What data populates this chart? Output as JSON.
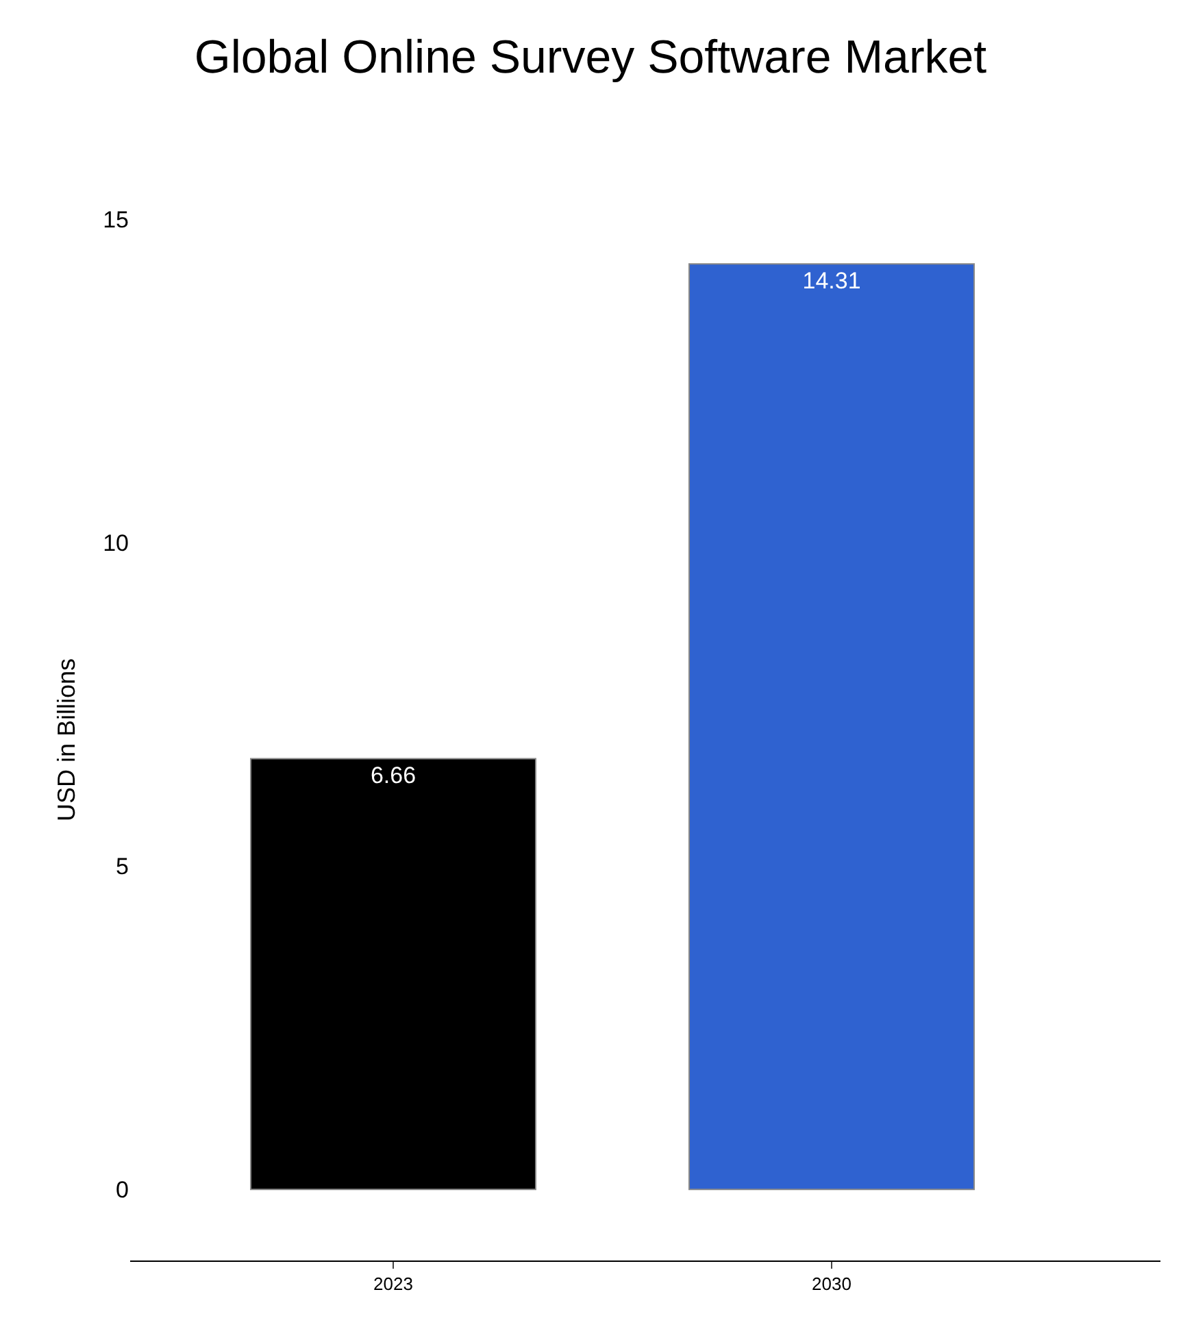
{
  "chart_data": {
    "type": "bar",
    "title": "Global Online Survey Software Market",
    "ylabel": "USD in Billions",
    "categories": [
      "2023",
      "2030"
    ],
    "values": [
      6.66,
      14.31
    ],
    "colors": [
      "#000000",
      "#2f62d0"
    ],
    "data_labels": true,
    "ylim": [
      -1.1,
      15
    ],
    "yticks": [
      0,
      5,
      10,
      15
    ]
  }
}
